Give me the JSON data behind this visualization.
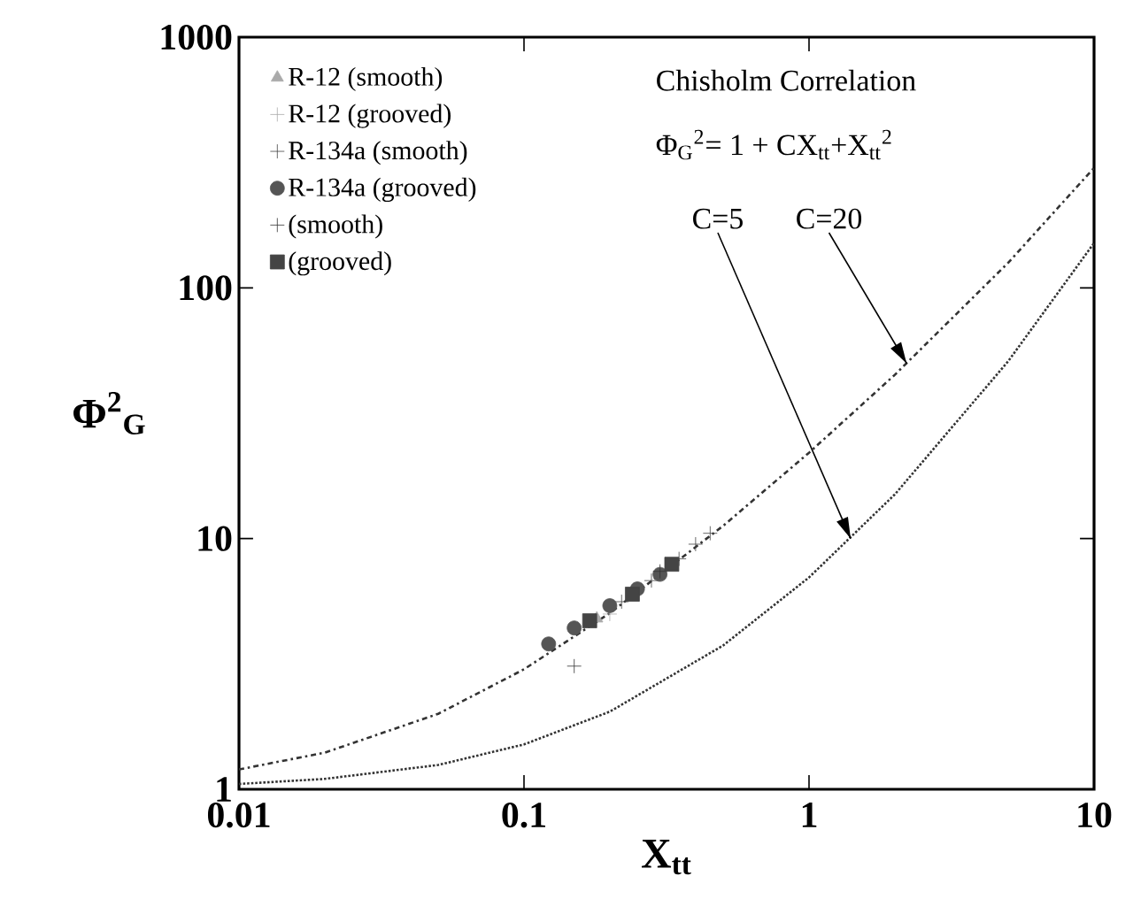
{
  "chart_data": {
    "type": "scatter",
    "xlabel": "X$_{tt}$",
    "ylabel": "Φ$^{2}$$_{G}$",
    "log": "xy",
    "xlim": [
      0.01,
      10
    ],
    "ylim": [
      1,
      1000
    ],
    "xticks": [
      0.01,
      0.1,
      1,
      10
    ],
    "yticks": [
      1,
      10,
      100,
      1000
    ],
    "grid": false,
    "legend": "top left",
    "annotations": [
      "Chisholm Correlation",
      "Φ$_{G}$$^{2}$= 1 + CX$_{tt}$+X$_{tt}$$^{2}$",
      {
        "text": "C=5",
        "x": 1.4,
        "y": 10
      },
      {
        "text": "C=20",
        "x": 2.2,
        "y": 50
      }
    ],
    "series": [
      {
        "name": "R-12 (smooth)",
        "color": "#aaaaaa",
        "marker": "triangle",
        "x": [
          0.18
        ],
        "values": [
          4.8
        ]
      },
      {
        "name": "R-12 (grooved)",
        "color": "#aaaaaa",
        "marker": "cross",
        "x": [
          0.2
        ],
        "values": [
          5.0
        ]
      },
      {
        "name": "R-134a (smooth)",
        "color": "#444444",
        "marker": "cross",
        "x": [
          0.22,
          0.28,
          0.35,
          0.4,
          0.45
        ],
        "values": [
          5.6,
          6.8,
          8.3,
          9.5,
          10.5
        ]
      },
      {
        "name": "R-134a (grooved)",
        "color": "#555555",
        "marker": "circle",
        "x": [
          0.122,
          0.15,
          0.2,
          0.25,
          0.3
        ],
        "values": [
          3.8,
          4.4,
          5.4,
          6.3,
          7.2
        ]
      },
      {
        "name": "(smooth)",
        "color": "#333333",
        "marker": "cross",
        "x": [
          0.15,
          0.3
        ],
        "values": [
          3.1,
          7.4
        ]
      },
      {
        "name": "(grooved)",
        "color": "#444444",
        "marker": "square",
        "x": [
          0.17,
          0.24,
          0.33
        ],
        "values": [
          4.7,
          6.0,
          7.9
        ]
      },
      {
        "type": "line",
        "color": "#333333",
        "line_style": "dashed",
        "marker": "none",
        "x": [
          0.01,
          0.02,
          0.05,
          0.1,
          0.2,
          0.5,
          1,
          2,
          5,
          10
        ],
        "values": [
          1.2,
          1.4,
          2.0,
          3.01,
          5.04,
          11.25,
          22,
          45,
          126,
          301
        ]
      },
      {
        "type": "line",
        "color": "#333333",
        "line_style": "dotted",
        "marker": "none",
        "x": [
          0.01,
          0.02,
          0.05,
          0.1,
          0.2,
          0.5,
          1,
          2,
          5,
          10
        ],
        "values": [
          1.05,
          1.1,
          1.25,
          1.51,
          2.04,
          3.75,
          7,
          15,
          51,
          151
        ]
      }
    ]
  }
}
